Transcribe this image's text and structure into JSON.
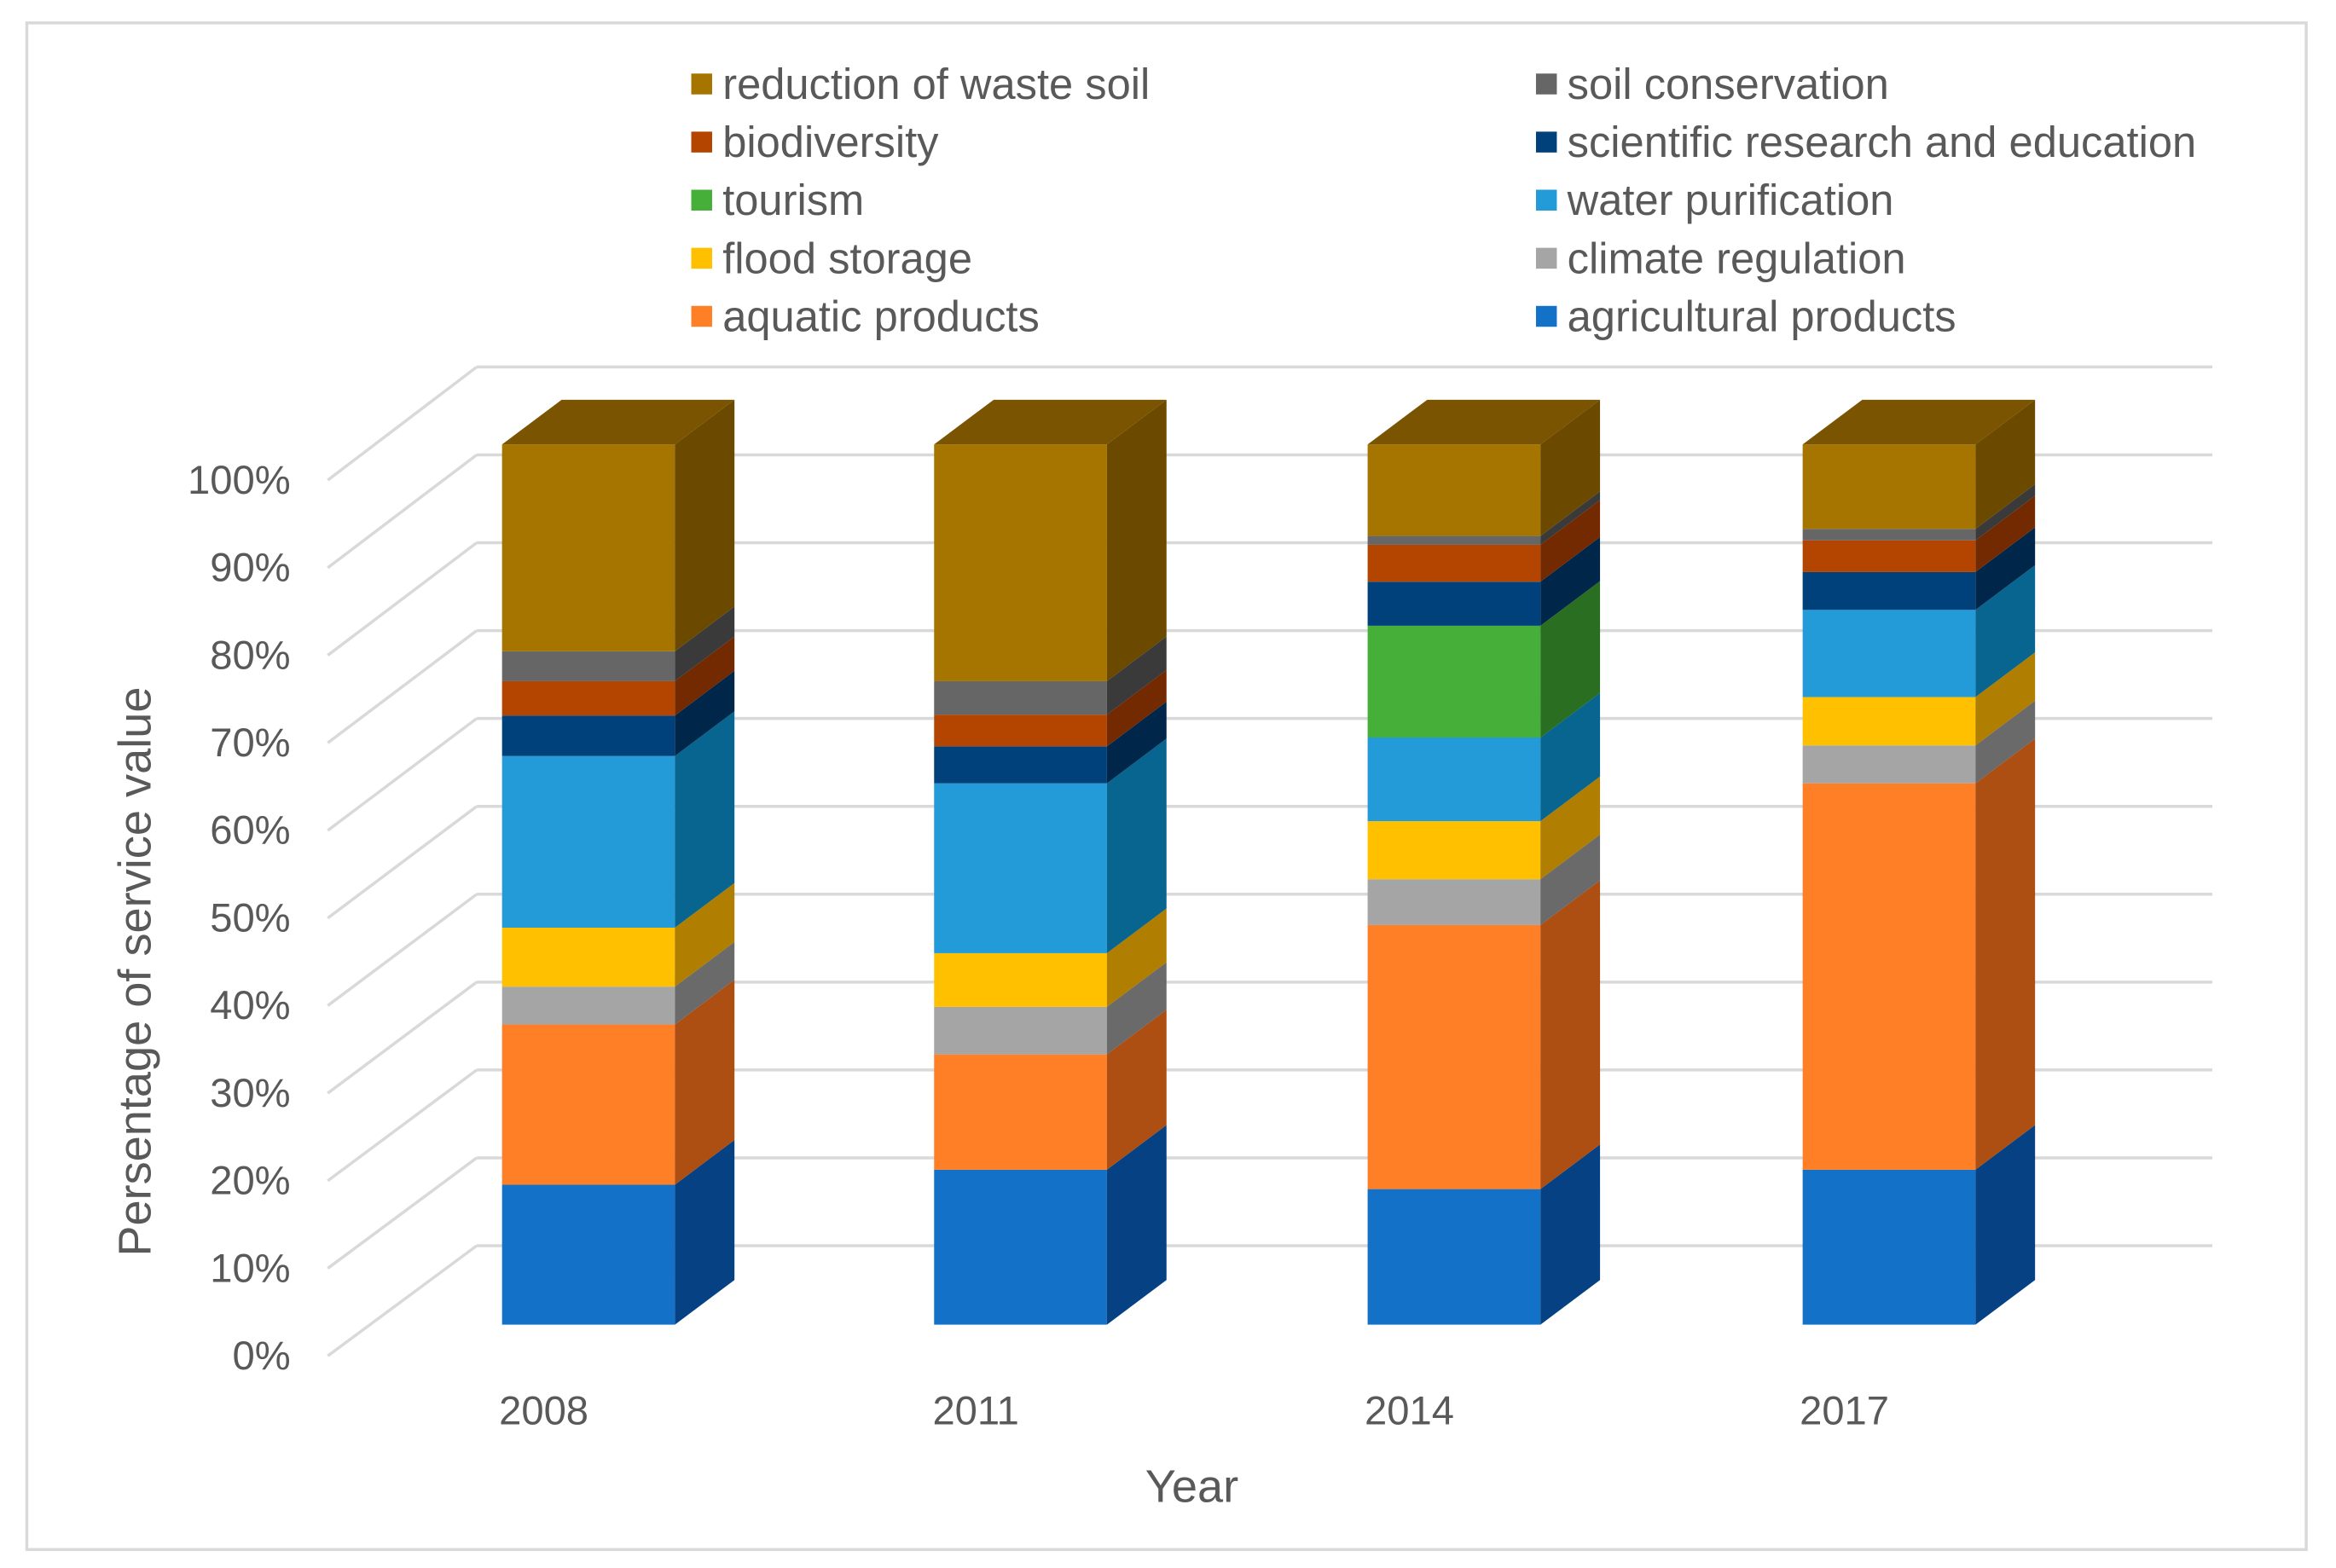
{
  "chart_data": {
    "type": "bar",
    "subtype": "3d-stacked-percent",
    "title": "",
    "xlabel": "Year",
    "ylabel": "Persentage of service value",
    "ylim": [
      0,
      100
    ],
    "yticks": [
      "0%",
      "10%",
      "20%",
      "30%",
      "40%",
      "50%",
      "60%",
      "70%",
      "80%",
      "90%",
      "100%"
    ],
    "grid": true,
    "legend_placement": "top",
    "categories": [
      "2008",
      "2011",
      "2014",
      "2017"
    ],
    "series": [
      {
        "name": "agricultural products",
        "color": "#1372C8",
        "side": "#064283",
        "values": [
          15.9,
          17.6,
          15.4,
          17.6
        ]
      },
      {
        "name": "aquatic products",
        "color": "#FF7F27",
        "side": "#AD4E12",
        "values": [
          18.2,
          13.1,
          30.0,
          43.9
        ]
      },
      {
        "name": "climate regulation",
        "color": "#A5A5A5",
        "side": "#6A6A6A",
        "values": [
          4.3,
          5.4,
          5.2,
          4.3
        ]
      },
      {
        "name": "flood storage",
        "color": "#FFC000",
        "side": "#B07E00",
        "values": [
          6.7,
          6.1,
          6.6,
          5.5
        ]
      },
      {
        "name": "water purification",
        "color": "#239BD8",
        "side": "#076590",
        "values": [
          19.5,
          19.3,
          9.5,
          9.9
        ]
      },
      {
        "name": "tourism",
        "color": "#46AF3A",
        "side": "#2A6F21",
        "values": [
          0,
          0,
          12.7,
          0
        ]
      },
      {
        "name": "scientific research and education",
        "color": "#00417B",
        "side": "#00264A",
        "values": [
          4.6,
          4.2,
          5.0,
          4.3
        ]
      },
      {
        "name": "biodiversity",
        "color": "#B34500",
        "side": "#732A00",
        "values": [
          3.9,
          3.6,
          4.2,
          3.6
        ]
      },
      {
        "name": "soil conservation",
        "color": "#666666",
        "side": "#3A3A3A",
        "values": [
          3.4,
          3.8,
          1.0,
          1.3
        ]
      },
      {
        "name": "reduction of waste soil",
        "color": "#A67500",
        "side": "#6B4A00",
        "values": [
          23.5,
          26.9,
          10.4,
          9.6
        ]
      }
    ],
    "legend_order_left": [
      9,
      7,
      5,
      3,
      1
    ],
    "legend_order_right": [
      8,
      6,
      4,
      2,
      0
    ],
    "top_color": "#7A5400"
  }
}
